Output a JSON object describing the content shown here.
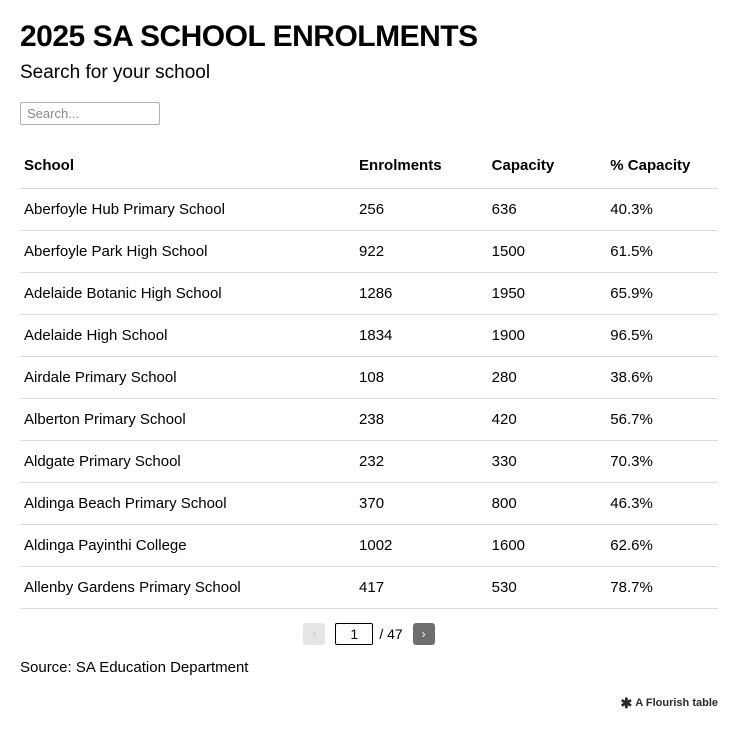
{
  "title": "2025 SA SCHOOL ENROLMENTS",
  "subtitle": "Search for your school",
  "search": {
    "placeholder": "Search..."
  },
  "table": {
    "columns": [
      "School",
      "Enrolments",
      "Capacity",
      "% Capacity"
    ],
    "rows": [
      [
        "Aberfoyle Hub Primary School",
        "256",
        "636",
        "40.3%"
      ],
      [
        "Aberfoyle Park High School",
        "922",
        "1500",
        "61.5%"
      ],
      [
        "Adelaide Botanic High School",
        "1286",
        "1950",
        "65.9%"
      ],
      [
        "Adelaide High School",
        "1834",
        "1900",
        "96.5%"
      ],
      [
        "Airdale Primary School",
        "108",
        "280",
        "38.6%"
      ],
      [
        "Alberton Primary School",
        "238",
        "420",
        "56.7%"
      ],
      [
        "Aldgate Primary School",
        "232",
        "330",
        "70.3%"
      ],
      [
        "Aldinga Beach Primary School",
        "370",
        "800",
        "46.3%"
      ],
      [
        "Aldinga Payinthi College",
        "1002",
        "1600",
        "62.6%"
      ],
      [
        "Allenby Gardens Primary School",
        "417",
        "530",
        "78.7%"
      ]
    ],
    "border_color": "#dcdcdc",
    "header_fontsize": 15,
    "cell_fontsize": 15
  },
  "pager": {
    "current_page": "1",
    "total_pages": "47",
    "prev_icon": "‹",
    "next_icon": "›",
    "separator": "/"
  },
  "source": "Source: SA Education Department",
  "credit": {
    "icon": "✱",
    "text": "A Flourish table"
  },
  "colors": {
    "background": "#ffffff",
    "text": "#000000",
    "border": "#dcdcdc",
    "pager_prev_bg": "#e5e5e5",
    "pager_next_bg": "#6e6e6e"
  }
}
